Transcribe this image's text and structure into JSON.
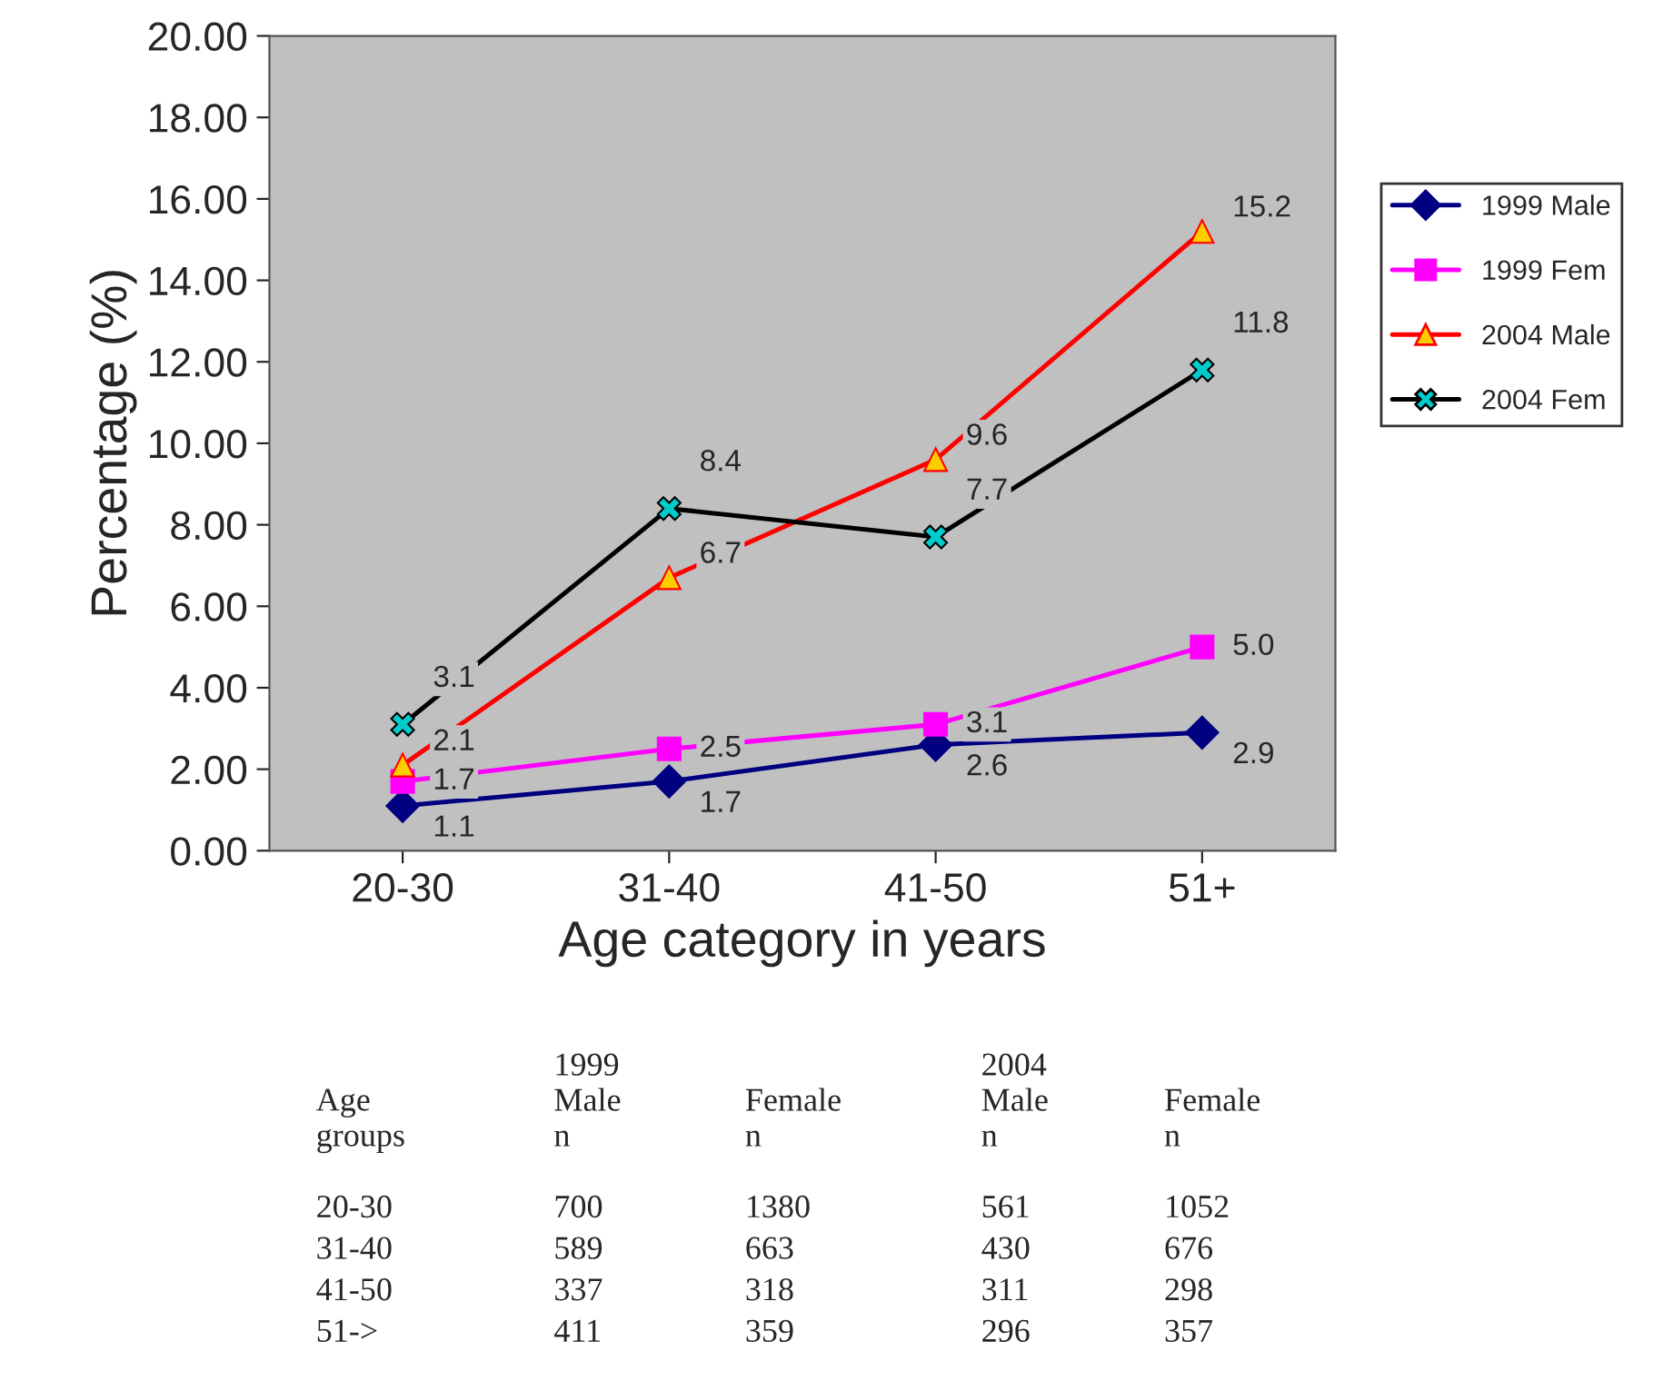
{
  "chart_data": {
    "type": "line",
    "xlabel": "Age category in years",
    "ylabel": "Percentage (%)",
    "categories": [
      "20-30",
      "31-40",
      "41-50",
      "51+"
    ],
    "series": [
      {
        "name": "1999 Male",
        "color": "#000080",
        "marker": "diamond",
        "values": [
          1.1,
          1.7,
          2.6,
          2.9
        ],
        "value_labels": [
          "1.1",
          "1.7",
          "2.6",
          "2.9"
        ]
      },
      {
        "name": "1999 Fem",
        "color": "#ff00ff",
        "marker": "square",
        "values": [
          1.7,
          2.5,
          3.1,
          5.0
        ],
        "value_labels": [
          "1.7",
          "2.5",
          "3.1",
          "5.0"
        ]
      },
      {
        "name": "2004 Male",
        "color": "#ff0000",
        "marker": "triangle",
        "values": [
          2.1,
          6.7,
          9.6,
          15.2
        ],
        "value_labels": [
          "2.1",
          "6.7",
          "9.6",
          "15.2"
        ]
      },
      {
        "name": "2004 Fem",
        "color": "#000000",
        "marker": "cross",
        "values": [
          3.1,
          8.4,
          7.7,
          11.8
        ],
        "value_labels": [
          "3.1",
          "8.4",
          "7.7",
          "11.8"
        ]
      }
    ],
    "ylim": [
      0,
      20
    ],
    "yticks": [
      {
        "value": 0,
        "label": "0.00"
      },
      {
        "value": 2,
        "label": "2.00"
      },
      {
        "value": 4,
        "label": "4.00"
      },
      {
        "value": 6,
        "label": "6.00"
      },
      {
        "value": 8,
        "label": "8.00"
      },
      {
        "value": 10,
        "label": "10.00"
      },
      {
        "value": 12,
        "label": "12.00"
      },
      {
        "value": 14,
        "label": "14.00"
      },
      {
        "value": 16,
        "label": "16.00"
      },
      {
        "value": 18,
        "label": "18.00"
      },
      {
        "value": 20,
        "label": "20.00"
      }
    ],
    "grid": false,
    "legend": "right",
    "annotations": [
      "Age\ngroups",
      "1999\nMale\nn",
      "Female\nn",
      "2004\nMale\nn",
      "Female\nn",
      "20-30",
      "700",
      "1380",
      "561",
      "1052",
      "31-40",
      "589",
      "663",
      "430",
      "676",
      "41-50",
      "337",
      "318",
      "311",
      "298",
      "51->",
      "411",
      "359",
      "296",
      "357"
    ]
  }
}
